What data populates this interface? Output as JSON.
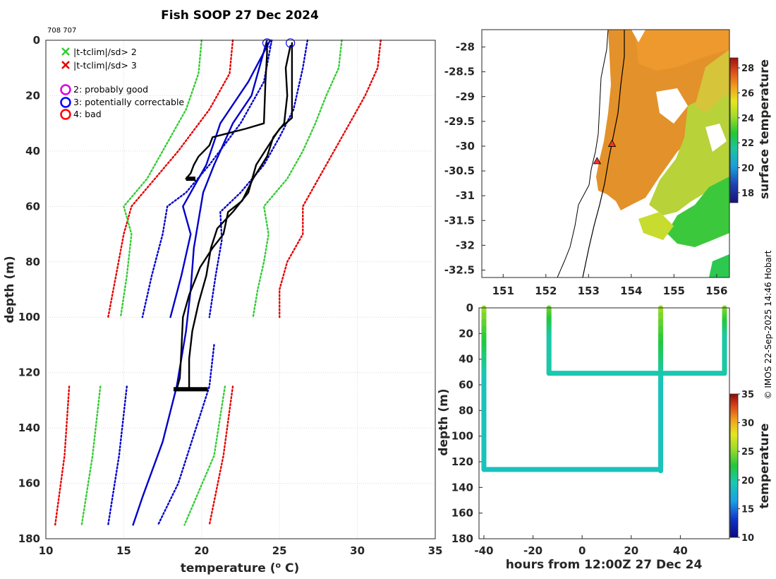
{
  "title": "Fish SOOP 27 Dec 2024",
  "cast_ids": "708 707",
  "credit": "© IMOS 22-Sep-2025 14:46 Hobart",
  "colors": {
    "sd2": "#33cc33",
    "sd3": "#e60000",
    "clim": "#0000cc",
    "profile": "#000000",
    "probably_good": "#dd00dd",
    "potentially_correctable": "#0000ff",
    "bad": "#ff0000",
    "land": "#ffffff",
    "coast": "#000000"
  },
  "legend": {
    "sd2": "|t-tclim|/sd> 2",
    "sd3": "|t-tclim|/sd> 3",
    "flag2": "2: probably good",
    "flag3": "3: potentially correctable",
    "flag4": "4: bad"
  },
  "chart_data": [
    {
      "id": "profile",
      "type": "line",
      "title": "Fish SOOP 27 Dec 2024",
      "xlabel": "temperature (° C)",
      "ylabel": "depth (m)",
      "xlim": [
        10,
        35
      ],
      "ylim": [
        180,
        0
      ],
      "xticks": [
        10,
        15,
        20,
        25,
        30,
        35
      ],
      "yticks": [
        0,
        20,
        40,
        60,
        80,
        100,
        120,
        140,
        160,
        180
      ],
      "grid": true,
      "series": [
        {
          "name": "sd3_left",
          "style": "dotted",
          "color": "sd3",
          "points": [
            [
              22,
              0
            ],
            [
              21.8,
              12
            ],
            [
              20.5,
              25
            ],
            [
              18.5,
              40
            ],
            [
              17,
              50
            ],
            [
              15.5,
              60
            ],
            [
              15,
              70
            ],
            [
              14.5,
              85
            ],
            [
              14,
              100
            ]
          ]
        },
        {
          "name": "sd3_right",
          "style": "dotted",
          "color": "sd3",
          "points": [
            [
              31.5,
              0
            ],
            [
              31.3,
              10
            ],
            [
              30.5,
              20
            ],
            [
              29.5,
              30
            ],
            [
              28.5,
              40
            ],
            [
              27.5,
              50
            ],
            [
              26.5,
              60
            ],
            [
              26.5,
              70
            ],
            [
              25.5,
              80
            ],
            [
              25,
              90
            ],
            [
              25,
              100
            ]
          ]
        },
        {
          "name": "sd2_left",
          "style": "dotted",
          "color": "sd2",
          "points": [
            [
              20,
              0
            ],
            [
              19.8,
              12
            ],
            [
              19,
              25
            ],
            [
              17.5,
              40
            ],
            [
              16.5,
              50
            ],
            [
              15,
              60
            ],
            [
              15.5,
              70
            ],
            [
              15.2,
              85
            ],
            [
              14.8,
              100
            ]
          ]
        },
        {
          "name": "sd2_right",
          "style": "dotted",
          "color": "sd2",
          "points": [
            [
              29,
              0
            ],
            [
              28.8,
              10
            ],
            [
              28,
              20
            ],
            [
              27.3,
              30
            ],
            [
              26.5,
              40
            ],
            [
              25.5,
              50
            ],
            [
              24,
              60
            ],
            [
              24.3,
              70
            ],
            [
              24,
              80
            ],
            [
              23.6,
              90
            ],
            [
              23.3,
              100
            ]
          ]
        },
        {
          "name": "clim_left",
          "style": "dotted",
          "color": "clim",
          "points": [
            [
              24.5,
              0
            ],
            [
              24,
              15
            ],
            [
              22.5,
              30
            ],
            [
              20.5,
              45
            ],
            [
              19,
              55
            ],
            [
              17.8,
              60
            ],
            [
              17.5,
              70
            ],
            [
              16.8,
              85
            ],
            [
              16.2,
              100
            ]
          ]
        },
        {
          "name": "clim_right",
          "style": "dotted",
          "color": "clim",
          "points": [
            [
              26.8,
              0
            ],
            [
              26.5,
              10
            ],
            [
              25.9,
              25
            ],
            [
              25,
              35
            ],
            [
              24,
              45
            ],
            [
              22.5,
              55
            ],
            [
              21.2,
              62
            ],
            [
              21.3,
              72
            ],
            [
              20.9,
              85
            ],
            [
              20.5,
              100
            ]
          ]
        },
        {
          "name": "sd3_lower_left",
          "style": "dotted",
          "color": "sd3",
          "points": [
            [
              11.5,
              125
            ],
            [
              11.2,
              150
            ],
            [
              10.6,
              175
            ]
          ]
        },
        {
          "name": "sd3_lower_right",
          "style": "dotted",
          "color": "sd3",
          "points": [
            [
              22,
              125
            ],
            [
              21.4,
              150
            ],
            [
              20.5,
              175
            ]
          ]
        },
        {
          "name": "sd2_lower_left",
          "style": "dotted",
          "color": "sd2",
          "points": [
            [
              13.5,
              125
            ],
            [
              13,
              150
            ],
            [
              12.3,
              175
            ]
          ]
        },
        {
          "name": "sd2_lower_right",
          "style": "dotted",
          "color": "sd2",
          "points": [
            [
              21.5,
              125
            ],
            [
              20.8,
              150
            ],
            [
              18.9,
              175
            ]
          ]
        },
        {
          "name": "clim_lower_left",
          "style": "dotted",
          "color": "clim",
          "points": [
            [
              15.2,
              125
            ],
            [
              14.7,
              150
            ],
            [
              14,
              175
            ]
          ]
        },
        {
          "name": "clim_lower_right",
          "style": "dotted",
          "color": "clim",
          "points": [
            [
              20.8,
              110
            ],
            [
              20.5,
              125
            ],
            [
              18.5,
              160
            ],
            [
              17.2,
              175
            ]
          ]
        },
        {
          "name": "clim_mean_upper",
          "style": "solid",
          "color": "clim",
          "points": [
            [
              24.4,
              0
            ],
            [
              23,
              15
            ],
            [
              21.2,
              30
            ],
            [
              20.3,
              45
            ],
            [
              18.8,
              60
            ],
            [
              19.3,
              70
            ],
            [
              18.7,
              85
            ],
            [
              18,
              100
            ]
          ]
        },
        {
          "name": "clim_mean_lower",
          "style": "solid",
          "color": "clim",
          "points": [
            [
              19,
              105
            ],
            [
              18.4,
              125
            ],
            [
              17.5,
              145
            ],
            [
              16.2,
              165
            ],
            [
              15.6,
              175
            ]
          ]
        },
        {
          "name": "clim_mean_mid",
          "style": "solid",
          "color": "clim",
          "points": [
            [
              24.2,
              0
            ],
            [
              23.2,
              20
            ],
            [
              22,
              30
            ],
            [
              20.8,
              45
            ],
            [
              20.1,
              55
            ],
            [
              19.5,
              75
            ],
            [
              19.3,
              90
            ],
            [
              19,
              105
            ]
          ]
        },
        {
          "name": "profile_708",
          "style": "solid",
          "color": "profile",
          "points": [
            [
              24.2,
              1
            ],
            [
              24.2,
              5
            ],
            [
              24.1,
              15
            ],
            [
              24,
              30
            ],
            [
              22.8,
              32
            ],
            [
              20.7,
              35
            ],
            [
              20.5,
              38
            ],
            [
              19.8,
              42
            ],
            [
              19.5,
              45
            ],
            [
              19.3,
              48
            ],
            [
              19,
              50
            ]
          ]
        },
        {
          "name": "profile_707",
          "style": "solid",
          "color": "profile",
          "points": [
            [
              25.8,
              1
            ],
            [
              25.8,
              15
            ],
            [
              25.8,
              28
            ],
            [
              25,
              32
            ],
            [
              24.3,
              38
            ],
            [
              23.5,
              45
            ],
            [
              23,
              55
            ],
            [
              22,
              62
            ],
            [
              21,
              68
            ],
            [
              20.6,
              75
            ],
            [
              20.3,
              85
            ],
            [
              19.8,
              95
            ],
            [
              19.4,
              105
            ],
            [
              19.2,
              115
            ],
            [
              19.2,
              126
            ]
          ]
        },
        {
          "name": "profile_707b",
          "style": "solid",
          "color": "profile",
          "points": [
            [
              25.7,
              2
            ],
            [
              25.4,
              10
            ],
            [
              25.5,
              20
            ],
            [
              25.3,
              30
            ],
            [
              24.6,
              35
            ],
            [
              24.2,
              42
            ],
            [
              23.3,
              50
            ],
            [
              22.6,
              58
            ],
            [
              21.7,
              62
            ],
            [
              21.4,
              70
            ],
            [
              20.7,
              75
            ],
            [
              19.9,
              82
            ],
            [
              19.2,
              92
            ],
            [
              18.8,
              100
            ],
            [
              18.7,
              112
            ],
            [
              18.6,
              122
            ],
            [
              18.4,
              126
            ]
          ]
        }
      ],
      "flag_markers": [
        {
          "temperature": 24.2,
          "depth": 1,
          "flag": 3
        },
        {
          "temperature": 25.7,
          "depth": 1,
          "flag": 3
        }
      ]
    },
    {
      "id": "sst_map",
      "type": "heatmap",
      "xlim": [
        150.5,
        156.3
      ],
      "ylim": [
        -32.65,
        -27.65
      ],
      "xticks": [
        151,
        152,
        153,
        154,
        155,
        156
      ],
      "xtick_labels": [
        "151",
        "152",
        "153",
        "154",
        "155",
        "156"
      ],
      "yticks": [
        -28,
        -28.5,
        -29,
        -29.5,
        -30,
        -30.5,
        -31,
        -31.5,
        -32,
        -32.5
      ],
      "ytick_labels": [
        "-28",
        "-28.5",
        "-29",
        "-29.5",
        "-30",
        "-30.5",
        "-31",
        "-31.5",
        "-32",
        "-32.5"
      ],
      "colorbar_label": "surface temperature",
      "colorbar_range": [
        17.2,
        28.8
      ],
      "colorbar_ticks": [
        18,
        20,
        22,
        24,
        26,
        28
      ],
      "colorbar_tick_labels": [
        "18",
        "20",
        "22",
        "24",
        "26",
        "28"
      ],
      "markers": [
        {
          "lon": 153.2,
          "lat": -30.3,
          "type": "triangle"
        },
        {
          "lon": 153.55,
          "lat": -29.95,
          "type": "triangle"
        }
      ]
    },
    {
      "id": "hovmoller",
      "type": "scatter",
      "xlabel": "hours from 12:00Z 27 Dec 24",
      "ylabel": "depth (m)",
      "xlim": [
        -42,
        60
      ],
      "ylim": [
        180,
        0
      ],
      "xticks": [
        -40,
        -20,
        0,
        20,
        40
      ],
      "xtick_labels": [
        "-40",
        "-20",
        "0",
        "20",
        "40"
      ],
      "yticks": [
        0,
        20,
        40,
        60,
        80,
        100,
        120,
        140,
        160,
        180
      ],
      "ytick_labels": [
        "0",
        "20",
        "40",
        "60",
        "80",
        "100",
        "120",
        "140",
        "160",
        "180"
      ],
      "colorbar_label": "temperature",
      "colorbar_range": [
        10,
        35
      ],
      "colorbar_ticks": [
        10,
        15,
        20,
        25,
        30,
        35
      ],
      "colorbar_tick_labels": [
        "10",
        "15",
        "20",
        "25",
        "30",
        "35"
      ],
      "casts": [
        {
          "hours": -40,
          "max_depth": 126,
          "surface_temp": 25.5,
          "bottom_temp": 19
        },
        {
          "hours": -13.5,
          "max_depth": 51,
          "surface_temp": 24.5,
          "bottom_temp": 19.8
        },
        {
          "hours": 32,
          "max_depth": 127,
          "surface_temp": 25.5,
          "bottom_temp": 19.2
        },
        {
          "hours": 58,
          "max_depth": 51,
          "surface_temp": 25,
          "bottom_temp": 19.9
        }
      ],
      "bottom_tracks": [
        {
          "from_hours": -40,
          "to_hours": 32,
          "depth": 126,
          "temp": 19
        },
        {
          "from_hours": -13.5,
          "to_hours": 58,
          "depth": 51,
          "temp": 19.6
        }
      ]
    }
  ]
}
